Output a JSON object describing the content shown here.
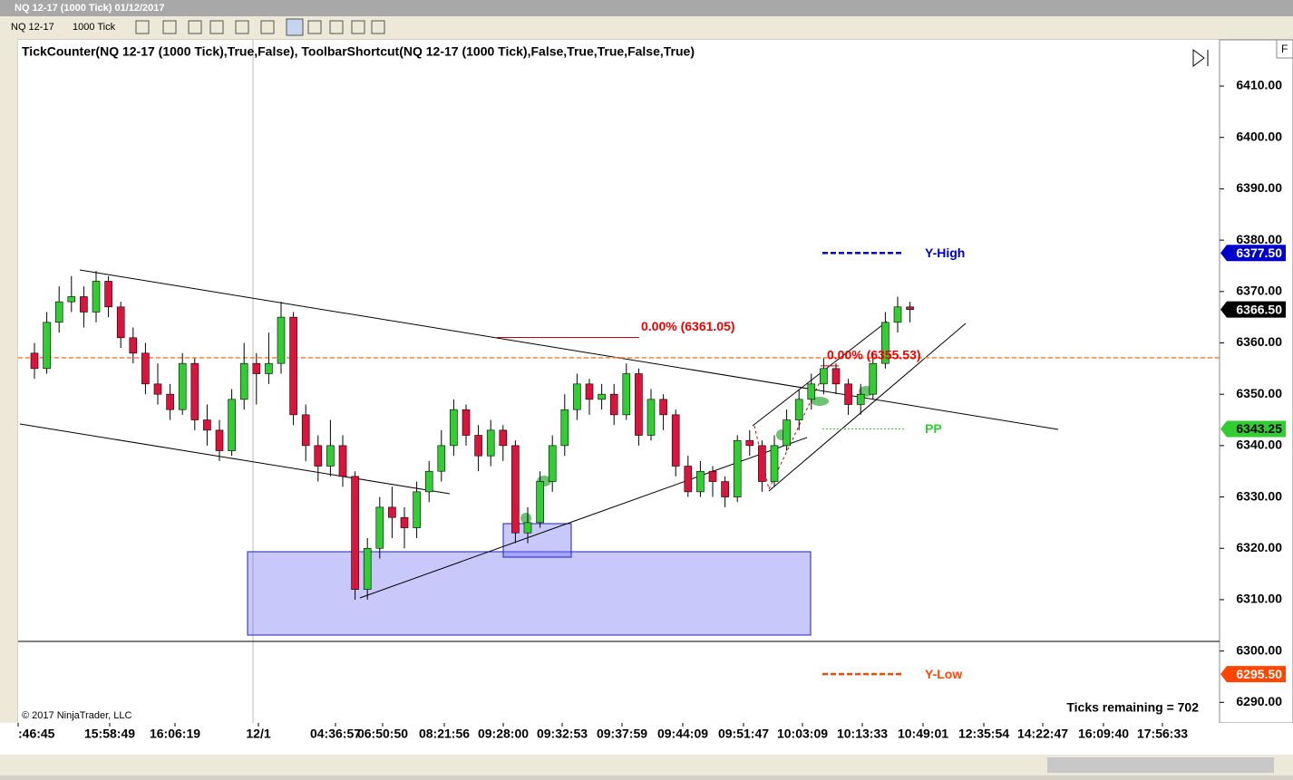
{
  "window": {
    "title": "NQ 12-17 (1000 Tick)  01/12/2017",
    "toolbar": {
      "instrument": "NQ 12-17",
      "interval": "1000 Tick"
    }
  },
  "chart_data": {
    "type": "candlestick",
    "title": "TickCounter(NQ 12-17 (1000 Tick),True,False), ToolbarShortcut(NQ 12-17 (1000 Tick),False,True,True,False,True)",
    "open": [
      6358,
      6355,
      6364,
      6368,
      6369,
      6366,
      6372,
      6367,
      6361,
      6358,
      6352,
      6350,
      6347,
      6356,
      6345,
      6343,
      6339,
      6349,
      6356,
      6354,
      6356,
      6365,
      6346,
      6340,
      6336,
      6340,
      6334,
      6312,
      6320,
      6328,
      6326,
      6324,
      6331,
      6335,
      6340,
      6347,
      6342,
      6338,
      6343,
      6340,
      6323,
      6325,
      6333,
      6340,
      6347,
      6352,
      6349,
      6350,
      6346,
      6354,
      6342,
      6349,
      6346,
      6336,
      6331,
      6335,
      6333,
      6330,
      6341,
      6340,
      6333,
      6340,
      6345,
      6349,
      6352,
      6355,
      6352,
      6348,
      6350,
      6356,
      6364,
      6367
    ],
    "high": [
      6360,
      6366,
      6371,
      6373,
      6371,
      6374,
      6373,
      6368,
      6363,
      6360,
      6356,
      6352,
      6358,
      6357,
      6348,
      6345,
      6351,
      6360,
      6358,
      6362,
      6368,
      6366,
      6348,
      6342,
      6345,
      6342,
      6335,
      6322,
      6330,
      6332,
      6328,
      6333,
      6337,
      6343,
      6349,
      6348,
      6344,
      6345,
      6344,
      6341,
      6328,
      6335,
      6342,
      6350,
      6354,
      6353,
      6352,
      6352,
      6356,
      6355,
      6351,
      6350,
      6347,
      6338,
      6337,
      6336,
      6334,
      6342,
      6343,
      6341,
      6342,
      6347,
      6351,
      6354,
      6357,
      6356,
      6353,
      6352,
      6358,
      6366,
      6369,
      6368
    ],
    "low": [
      6353,
      6354,
      6362,
      6366,
      6363,
      6364,
      6365,
      6359,
      6356,
      6350,
      6348,
      6345,
      6346,
      6343,
      6340,
      6337,
      6338,
      6347,
      6348,
      6352,
      6354,
      6344,
      6337,
      6333,
      6334,
      6332,
      6310,
      6310,
      6318,
      6322,
      6320,
      6322,
      6329,
      6333,
      6338,
      6340,
      6335,
      6336,
      6337,
      6321,
      6321,
      6324,
      6331,
      6338,
      6345,
      6346,
      6347,
      6344,
      6345,
      6340,
      6341,
      6343,
      6334,
      6330,
      6330,
      6330,
      6328,
      6329,
      6338,
      6331,
      6332,
      6339,
      6343,
      6347,
      6350,
      6350,
      6346,
      6346,
      6349,
      6355,
      6362,
      6364
    ],
    "close": [
      6355,
      6364,
      6368,
      6369,
      6366,
      6372,
      6367,
      6361,
      6358,
      6352,
      6350,
      6347,
      6356,
      6345,
      6343,
      6339,
      6349,
      6356,
      6354,
      6356,
      6365,
      6346,
      6340,
      6336,
      6340,
      6334,
      6312,
      6320,
      6328,
      6326,
      6324,
      6331,
      6335,
      6340,
      6347,
      6342,
      6338,
      6343,
      6340,
      6323,
      6325,
      6333,
      6340,
      6347,
      6352,
      6349,
      6350,
      6346,
      6354,
      6342,
      6349,
      6346,
      6336,
      6331,
      6335,
      6333,
      6330,
      6341,
      6340,
      6333,
      6340,
      6345,
      6349,
      6352,
      6355,
      6352,
      6348,
      6350,
      6356,
      6364,
      6367,
      6366.5
    ],
    "up_color": "#32cd32",
    "down_color": "#dc143c",
    "x_labels": [
      ":46:45",
      "15:58:49",
      "16:06:19",
      "12/1",
      "04:36:57",
      "06:50:50",
      "08:21:56",
      "09:28:00",
      "09:32:53",
      "09:37:59",
      "09:44:09",
      "09:51:47",
      "10:03:09",
      "10:13:33",
      "10:49:01",
      "12:35:54",
      "14:22:47",
      "16:09:40",
      "17:56:33"
    ],
    "ylim": [
      6286,
      6419
    ],
    "yticks": [
      {
        "value": 6290,
        "label": "6290.00"
      },
      {
        "value": 6300,
        "label": "6300.00"
      },
      {
        "value": 6310,
        "label": "6310.00"
      },
      {
        "value": 6320,
        "label": "6320.00"
      },
      {
        "value": 6330,
        "label": "6330.00"
      },
      {
        "value": 6340,
        "label": "6340.00"
      },
      {
        "value": 6350,
        "label": "6350.00"
      },
      {
        "value": 6360,
        "label": "6360.00"
      },
      {
        "value": 6370,
        "label": "6370.00"
      },
      {
        "value": 6380,
        "label": "6380.00"
      },
      {
        "value": 6390,
        "label": "6390.00"
      },
      {
        "value": 6400,
        "label": "6400.00"
      },
      {
        "value": 6410,
        "label": "6410.00"
      }
    ],
    "levels": [
      {
        "name": "Y-High",
        "value": 6377.5,
        "label": "6377.50",
        "color": "#0000cd"
      },
      {
        "value": 6366.5,
        "label": "6366.50",
        "color": "#000000"
      },
      {
        "name": "PP",
        "value": 6343.25,
        "label": "6343.25",
        "color": "#32cd32"
      },
      {
        "name": "Y-Low",
        "value": 6295.5,
        "label": "6295.50",
        "color": "#ff4500"
      }
    ],
    "hline": {
      "value": 6357.1,
      "color": "#ff7f3f"
    },
    "annotations": [
      {
        "label": "0.00% (6361.05)",
        "value": 6361.05
      },
      {
        "label": "0.00% (6355.53)",
        "value": 6355.53
      }
    ],
    "copyright": "© 2017 NinjaTrader, LLC",
    "footer": "Ticks remaining = 702"
  }
}
